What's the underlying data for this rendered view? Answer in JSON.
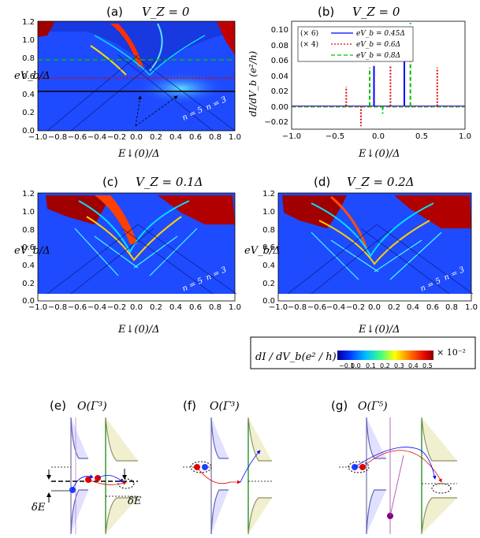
{
  "panels": {
    "a": {
      "label": "(a)",
      "title": "V_Z = 0",
      "ylabel": "eV_b/Δ",
      "xlabel": "E↓(0)/Δ",
      "annotations": [
        "n = 3",
        "n = 5"
      ]
    },
    "b": {
      "label": "(b)",
      "title": "V_Z = 0",
      "ylabel": "dI/dV_b (e²/h)",
      "xlabel": "E↓(0)/Δ"
    },
    "c": {
      "label": "(c)",
      "title": "V_Z = 0.1Δ",
      "ylabel": "eV_b/Δ",
      "xlabel": "E↓(0)/Δ",
      "annotations": [
        "n = 3",
        "n = 5"
      ]
    },
    "d": {
      "label": "(d)",
      "title": "V_Z = 0.2Δ",
      "ylabel": "eV_b/Δ",
      "xlabel": "E↓(0)/Δ",
      "annotations": [
        "n = 3",
        "n = 5"
      ]
    },
    "e": {
      "label": "(e)",
      "order": "O(Γ³)",
      "delta_labels": [
        "δE",
        "δE"
      ]
    },
    "f": {
      "label": "(f)",
      "order": "O(Γ³)"
    },
    "g": {
      "label": "(g)",
      "order": "O(Γ⁵)"
    }
  },
  "colorbar": {
    "label": "dI / dV_b(e² / h)",
    "ticks": [
      "−0.1",
      "0.0",
      "0.1",
      "0.2",
      "0.3",
      "0.4",
      "0.5"
    ],
    "multiplier": "× 10⁻²"
  },
  "colors": {
    "blue": "#0000ff",
    "red": "#e00000",
    "green": "#00c000",
    "bg_blue": "#1040ff",
    "dark_red": "#a00000"
  },
  "chart_data": [
    {
      "type": "heatmap",
      "panel": "a",
      "title": "V_Z = 0",
      "xlabel": "E↓(0)/Δ",
      "ylabel": "eV_b/Δ",
      "x_ticks": [
        "−1.0",
        "−0.8",
        "−0.6",
        "−0.4",
        "−0.2",
        "0.0",
        "0.2",
        "0.4",
        "0.6",
        "0.8",
        "1.0"
      ],
      "y_ticks": [
        "0.0",
        "0.2",
        "0.4",
        "0.6",
        "0.8",
        "1.0",
        "1.2"
      ],
      "xlim": [
        -1.0,
        1.0
      ],
      "ylim": [
        0.0,
        1.2
      ],
      "cut_lines": [
        {
          "y": 0.45,
          "color": "#000000"
        },
        {
          "y": 0.6,
          "color": "#e00000"
        },
        {
          "y": 0.8,
          "color": "#00c000"
        }
      ]
    },
    {
      "type": "line",
      "panel": "b",
      "title": "V_Z = 0",
      "xlabel": "E↓(0)/Δ",
      "ylabel": "dI/dV_b (e²/h)",
      "x_ticks": [
        "−1.0",
        "−0.5",
        "0.0",
        "0.5",
        "1.0"
      ],
      "y_ticks": [
        "−0.02",
        "0.00",
        "0.02",
        "0.04",
        "0.06",
        "0.08",
        "0.10"
      ],
      "xlim": [
        -1.0,
        1.0
      ],
      "ylim": [
        -0.03,
        0.11
      ],
      "series": [
        {
          "name": "eV_b = 0.45Δ",
          "scale": "(× 6)",
          "color": "#0000ff",
          "x": [
            -0.05,
            0.3
          ],
          "values": [
            0.052,
            0.082
          ]
        },
        {
          "name": "eV_b = 0.6Δ",
          "scale": "(× 4)",
          "color": "#e00000",
          "x": [
            -0.37,
            -0.2,
            0.14,
            0.68
          ],
          "values": [
            0.025,
            -0.026,
            0.052,
            0.05
          ]
        },
        {
          "name": "eV_b = 0.8Δ",
          "color": "#00c000",
          "x": [
            -0.1,
            0.05,
            0.37
          ],
          "values": [
            0.05,
            -0.01,
            0.108
          ]
        }
      ]
    },
    {
      "type": "heatmap",
      "panel": "c",
      "title": "V_Z = 0.1Δ",
      "xlabel": "E↓(0)/Δ",
      "ylabel": "eV_b/Δ",
      "x_ticks": [
        "−1.0",
        "−0.8",
        "−0.6",
        "−0.4",
        "−0.2",
        "0.0",
        "0.2",
        "0.4",
        "0.6",
        "0.8",
        "1.0"
      ],
      "y_ticks": [
        "0.0",
        "0.2",
        "0.4",
        "0.6",
        "0.8",
        "1.0",
        "1.2"
      ],
      "xlim": [
        -1.0,
        1.0
      ],
      "ylim": [
        0.0,
        1.2
      ]
    },
    {
      "type": "heatmap",
      "panel": "d",
      "title": "V_Z = 0.2Δ",
      "xlabel": "E↓(0)/Δ",
      "ylabel": "eV_b/Δ",
      "x_ticks": [
        "−1.0",
        "−0.8",
        "−0.6",
        "−0.4",
        "−0.2",
        "0.0",
        "0.2",
        "0.4",
        "0.6",
        "0.8",
        "1.0"
      ],
      "y_ticks": [
        "0.0",
        "0.2",
        "0.4",
        "0.6",
        "0.8",
        "1.0",
        "1.2"
      ],
      "xlim": [
        -1.0,
        1.0
      ],
      "ylim": [
        0.0,
        1.2
      ]
    }
  ]
}
